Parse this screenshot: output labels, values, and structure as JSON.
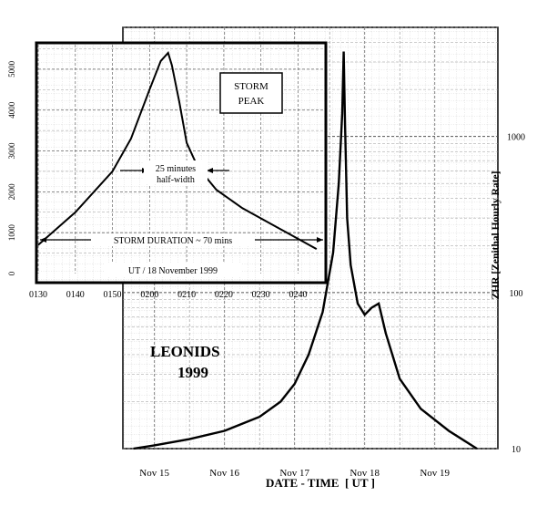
{
  "chart_data": [
    {
      "type": "line",
      "name": "main",
      "categories": [
        "Nov 15",
        "Nov 16",
        "Nov 17",
        "Nov 18",
        "Nov 19"
      ],
      "xlabel": "DATE - TIME  [ UT ]",
      "ylabel": "ZHR  [Zenithal Hourly Rate]",
      "yscale": "log",
      "ylim": [
        10,
        5000
      ],
      "y_ticks": [
        "10",
        "100",
        "1000"
      ],
      "title": "LEONIDS\n1999",
      "grid": true,
      "series": [
        {
          "x": [
            14.7,
            15.0,
            15.5,
            16.0,
            16.5,
            16.8,
            17.0,
            17.2,
            17.4,
            17.55,
            17.63,
            17.68,
            17.7,
            17.72,
            17.75,
            17.8,
            17.9,
            18.0,
            18.1,
            18.2,
            18.3,
            18.5,
            18.8,
            19.2,
            19.6
          ],
          "y": [
            10,
            10.5,
            11.5,
            13,
            16,
            20,
            26,
            40,
            75,
            180,
            500,
            1400,
            3500,
            1200,
            300,
            150,
            85,
            72,
            80,
            85,
            55,
            28,
            18,
            13,
            10
          ]
        }
      ]
    },
    {
      "type": "line",
      "name": "inset",
      "x_ticks": [
        "0130",
        "0140",
        "0150",
        "0200",
        "0210",
        "0220",
        "0230",
        "0240"
      ],
      "y_ticks": [
        "0",
        "1000",
        "2000",
        "3000",
        "4000",
        "5000"
      ],
      "ylim": [
        0,
        5600
      ],
      "xlabel": "UT / 18 November 1999",
      "grid": true,
      "annotations": {
        "peak_box": [
          "STORM",
          "PEAK"
        ],
        "half_width": [
          "25 minutes",
          "half-width"
        ],
        "duration": "STORM DURATION ~ 70 mins"
      },
      "series": [
        {
          "x": [
            "0130",
            "0140",
            "0150",
            "0155",
            "0200",
            "0203",
            "0205",
            "0206",
            "0208",
            "0210",
            "0213",
            "0218",
            "0225",
            "0235",
            "0245"
          ],
          "y": [
            700,
            1500,
            2500,
            3300,
            4500,
            5200,
            5400,
            5100,
            4200,
            3200,
            2600,
            2050,
            1600,
            1100,
            600
          ]
        }
      ]
    }
  ]
}
